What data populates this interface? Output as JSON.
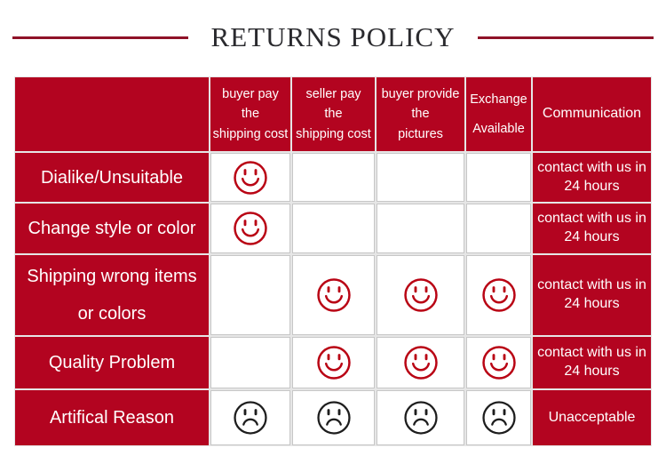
{
  "title": "RETURNS POLICY",
  "colors": {
    "red": "#b30420",
    "smiley": "#b90414",
    "sad": "#1d1d1d",
    "grid-line": "#c7c7c7",
    "gap": "#e6e6e6",
    "title-line": "#8f1228",
    "title-text": "#2a2a2e"
  },
  "table": {
    "header": {
      "buyer_pay": [
        "buyer pay",
        "the",
        "shipping cost"
      ],
      "seller_pay": [
        "seller pay",
        "the",
        "shipping cost"
      ],
      "buyer_provide": [
        "buyer provide",
        "the",
        "pictures"
      ],
      "exchange": [
        "Exchange",
        "Available"
      ],
      "communication": "Communication"
    },
    "rows": [
      {
        "label": "Dialike/Unsuitable",
        "buyer_pay": "smile",
        "seller_pay": "",
        "buyer_provide": "",
        "exchange": "",
        "communication": "contact with us in 24 hours"
      },
      {
        "label": "Change style or color",
        "buyer_pay": "smile",
        "seller_pay": "",
        "buyer_provide": "",
        "exchange": "",
        "communication": "contact with us in 24 hours"
      },
      {
        "label": "Shipping wrong items or colors",
        "buyer_pay": "",
        "seller_pay": "smile",
        "buyer_provide": "smile",
        "exchange": "smile",
        "communication": "contact with us in 24 hours"
      },
      {
        "label": "Quality Problem",
        "buyer_pay": "",
        "seller_pay": "smile",
        "buyer_provide": "smile",
        "exchange": "smile",
        "communication": "contact with us in 24 hours"
      },
      {
        "label": "Artifical Reason",
        "buyer_pay": "sad",
        "seller_pay": "sad",
        "buyer_provide": "sad",
        "exchange": "sad",
        "communication": "Unacceptable"
      }
    ]
  }
}
